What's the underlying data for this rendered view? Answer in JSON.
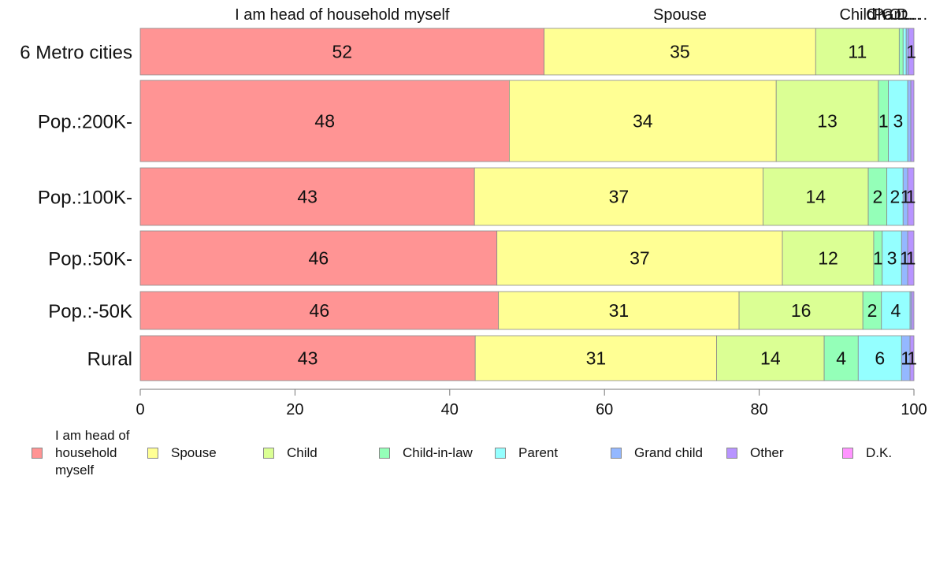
{
  "chart_data": {
    "type": "bar",
    "orientation": "horizontal",
    "stacked": true,
    "categories": [
      "6 Metro cities",
      "Pop.:200K-",
      "Pop.:100K-",
      "Pop.:50K-",
      "Pop.:-50K",
      "Rural"
    ],
    "series": [
      {
        "name": "I am head of\nhousehold\nmyself",
        "color": "#ff9494",
        "values": [
          52.2,
          47.7,
          43.2,
          46.1,
          46.3,
          43.3
        ],
        "labels": [
          "52",
          "48",
          "43",
          "46",
          "46",
          "43"
        ]
      },
      {
        "name": "Spouse",
        "color": "#ffff94",
        "values": [
          35.1,
          34.5,
          37.3,
          36.9,
          31.1,
          31.2
        ],
        "labels": [
          "35",
          "34",
          "37",
          "37",
          "31",
          "31"
        ]
      },
      {
        "name": "Child",
        "color": "#dbff94",
        "values": [
          10.8,
          13.2,
          13.6,
          11.8,
          16.0,
          13.9
        ],
        "labels": [
          "11",
          "13",
          "14",
          "12",
          "16",
          "14"
        ]
      },
      {
        "name": "Child-in-law",
        "color": "#94ffb8",
        "values": [
          0.5,
          1.3,
          2.4,
          1.1,
          2.4,
          4.4
        ],
        "labels": [
          "",
          "1",
          "2",
          "1",
          "2",
          "4"
        ]
      },
      {
        "name": "Parent",
        "color": "#94ffff",
        "values": [
          0.4,
          2.5,
          2.1,
          2.5,
          3.7,
          5.6
        ],
        "labels": [
          "",
          "3",
          "2",
          "3",
          "4",
          "6"
        ]
      },
      {
        "name": "Grand child",
        "color": "#94b8ff",
        "values": [
          0.3,
          0.4,
          0.6,
          0.8,
          0.2,
          1.1
        ],
        "labels": [
          "",
          "",
          "1",
          "1",
          "",
          "1"
        ]
      },
      {
        "name": "Other",
        "color": "#b894ff",
        "values": [
          0.7,
          0.4,
          0.8,
          0.8,
          0.3,
          0.5
        ],
        "labels": [
          "1",
          "",
          "1",
          "1",
          "",
          "1"
        ]
      },
      {
        "name": "D.K.",
        "color": "#ff94ff",
        "values": [
          0,
          0,
          0,
          0,
          0,
          0
        ],
        "labels": [
          "",
          "",
          "",
          "",
          "",
          ""
        ]
      }
    ],
    "top_labels": [
      "I am head of household myself",
      "Spouse",
      "Child",
      "Ch…",
      "Pa…",
      "Gr…",
      "Ot…",
      "D.…"
    ],
    "xlim": [
      0,
      100
    ],
    "xticks": [
      0,
      20,
      40,
      60,
      80,
      100
    ],
    "legend_position": "bottom",
    "grid": false
  }
}
